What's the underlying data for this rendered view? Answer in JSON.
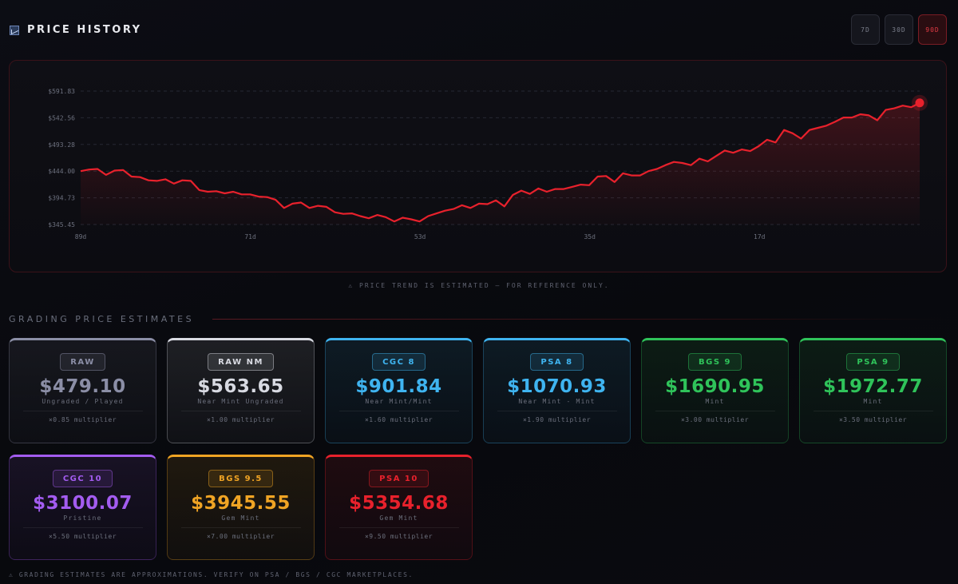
{
  "header": {
    "title": "PRICE HISTORY",
    "icon": "chart-icon",
    "ranges": [
      {
        "label": "7D",
        "active": false
      },
      {
        "label": "30D",
        "active": false
      },
      {
        "label": "90D",
        "active": true
      }
    ]
  },
  "chart_data": {
    "type": "area",
    "x_ticks": [
      "89d",
      "71d",
      "53d",
      "35d",
      "17d"
    ],
    "y_ticks": [
      "$591.83",
      "$542.56",
      "$493.28",
      "$444.00",
      "$394.73",
      "$345.45"
    ],
    "ylim": [
      345.45,
      591.83
    ],
    "x_range_days": [
      89,
      0
    ],
    "grid": true,
    "line_color": "#e8212c",
    "values": [
      444,
      447,
      448,
      437,
      445,
      446,
      434,
      433,
      427,
      426,
      429,
      421,
      427,
      426,
      409,
      406,
      407,
      403,
      406,
      401,
      401,
      397,
      396,
      391,
      376,
      384,
      386,
      376,
      380,
      378,
      368,
      365,
      366,
      361,
      357,
      363,
      359,
      351,
      358,
      355,
      351,
      361,
      366,
      371,
      374,
      381,
      376,
      384,
      383,
      390,
      379,
      400,
      408,
      402,
      412,
      406,
      411,
      411,
      415,
      419,
      418,
      434,
      435,
      424,
      440,
      436,
      436,
      444,
      448,
      455,
      461,
      459,
      455,
      467,
      462,
      472,
      482,
      478,
      484,
      481,
      490,
      502,
      497,
      520,
      514,
      504,
      520,
      524,
      528,
      535,
      543,
      543,
      549,
      547,
      538,
      557,
      560,
      565,
      562,
      570
    ]
  },
  "chart_note": "⚠ PRICE TREND IS ESTIMATED — FOR REFERENCE ONLY.",
  "grading": {
    "title": "GRADING PRICE ESTIMATES",
    "cards": [
      {
        "badge": "RAW",
        "price": "$479.10",
        "desc": "Ungraded / Played",
        "mult": "×0.85 multiplier",
        "color": "#8b8ea6"
      },
      {
        "badge": "RAW NM",
        "price": "$563.65",
        "desc": "Near Mint Ungraded",
        "mult": "×1.00 multiplier",
        "color": "#d8dae2"
      },
      {
        "badge": "CGC 8",
        "price": "$901.84",
        "desc": "Near Mint/Mint",
        "mult": "×1.60 multiplier",
        "color": "#3fb4f0"
      },
      {
        "badge": "PSA 8",
        "price": "$1070.93",
        "desc": "Near Mint - Mint",
        "mult": "×1.90 multiplier",
        "color": "#3fb4f0"
      },
      {
        "badge": "BGS 9",
        "price": "$1690.95",
        "desc": "Mint",
        "mult": "×3.00 multiplier",
        "color": "#2fc35a"
      },
      {
        "badge": "PSA 9",
        "price": "$1972.77",
        "desc": "Mint",
        "mult": "×3.50 multiplier",
        "color": "#2fc35a"
      },
      {
        "badge": "CGC 10",
        "price": "$3100.07",
        "desc": "Pristine",
        "mult": "×5.50 multiplier",
        "color": "#a35cf0"
      },
      {
        "badge": "BGS 9.5",
        "price": "$3945.55",
        "desc": "Gem Mint",
        "mult": "×7.00 multiplier",
        "color": "#f0a424"
      },
      {
        "badge": "PSA 10",
        "price": "$5354.68",
        "desc": "Gem Mint",
        "mult": "×9.50 multiplier",
        "color": "#e8212c"
      }
    ]
  },
  "footer_note": "⚠ GRADING ESTIMATES ARE APPROXIMATIONS. VERIFY ON PSA / BGS / CGC MARKETPLACES."
}
